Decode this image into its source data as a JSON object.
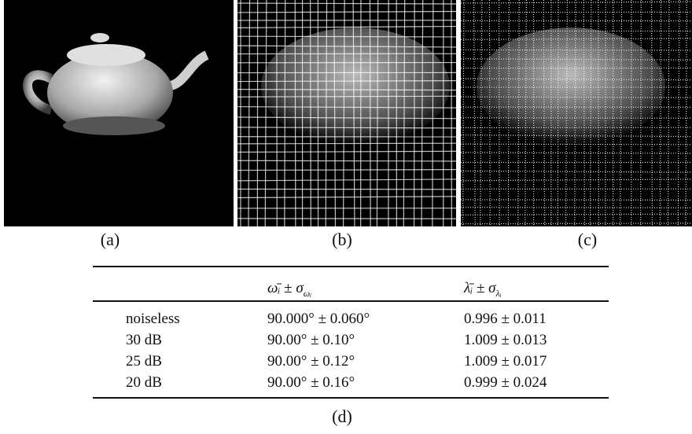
{
  "figure": {
    "panels": [
      {
        "label": "(a)"
      },
      {
        "label": "(b)"
      },
      {
        "label": "(c)"
      }
    ],
    "table": {
      "header": [
        {
          "main": "ω̄ᵢ ± σ",
          "sub": "ωᵢ"
        },
        {
          "main": "λ̄ᵢ ± σ",
          "sub": "λᵢ"
        }
      ],
      "rows": [
        [
          "noiseless",
          "90.000° ± 0.060°",
          "0.996 ± 0.011"
        ],
        [
          "30 dB",
          "90.00° ± 0.10°",
          "1.009 ± 0.013"
        ],
        [
          "25 dB",
          "90.00° ± 0.12°",
          "1.009 ± 0.017"
        ],
        [
          "20 dB",
          "90.00° ± 0.16°",
          "0.999 ± 0.024"
        ]
      ],
      "label": "(d)"
    }
  }
}
